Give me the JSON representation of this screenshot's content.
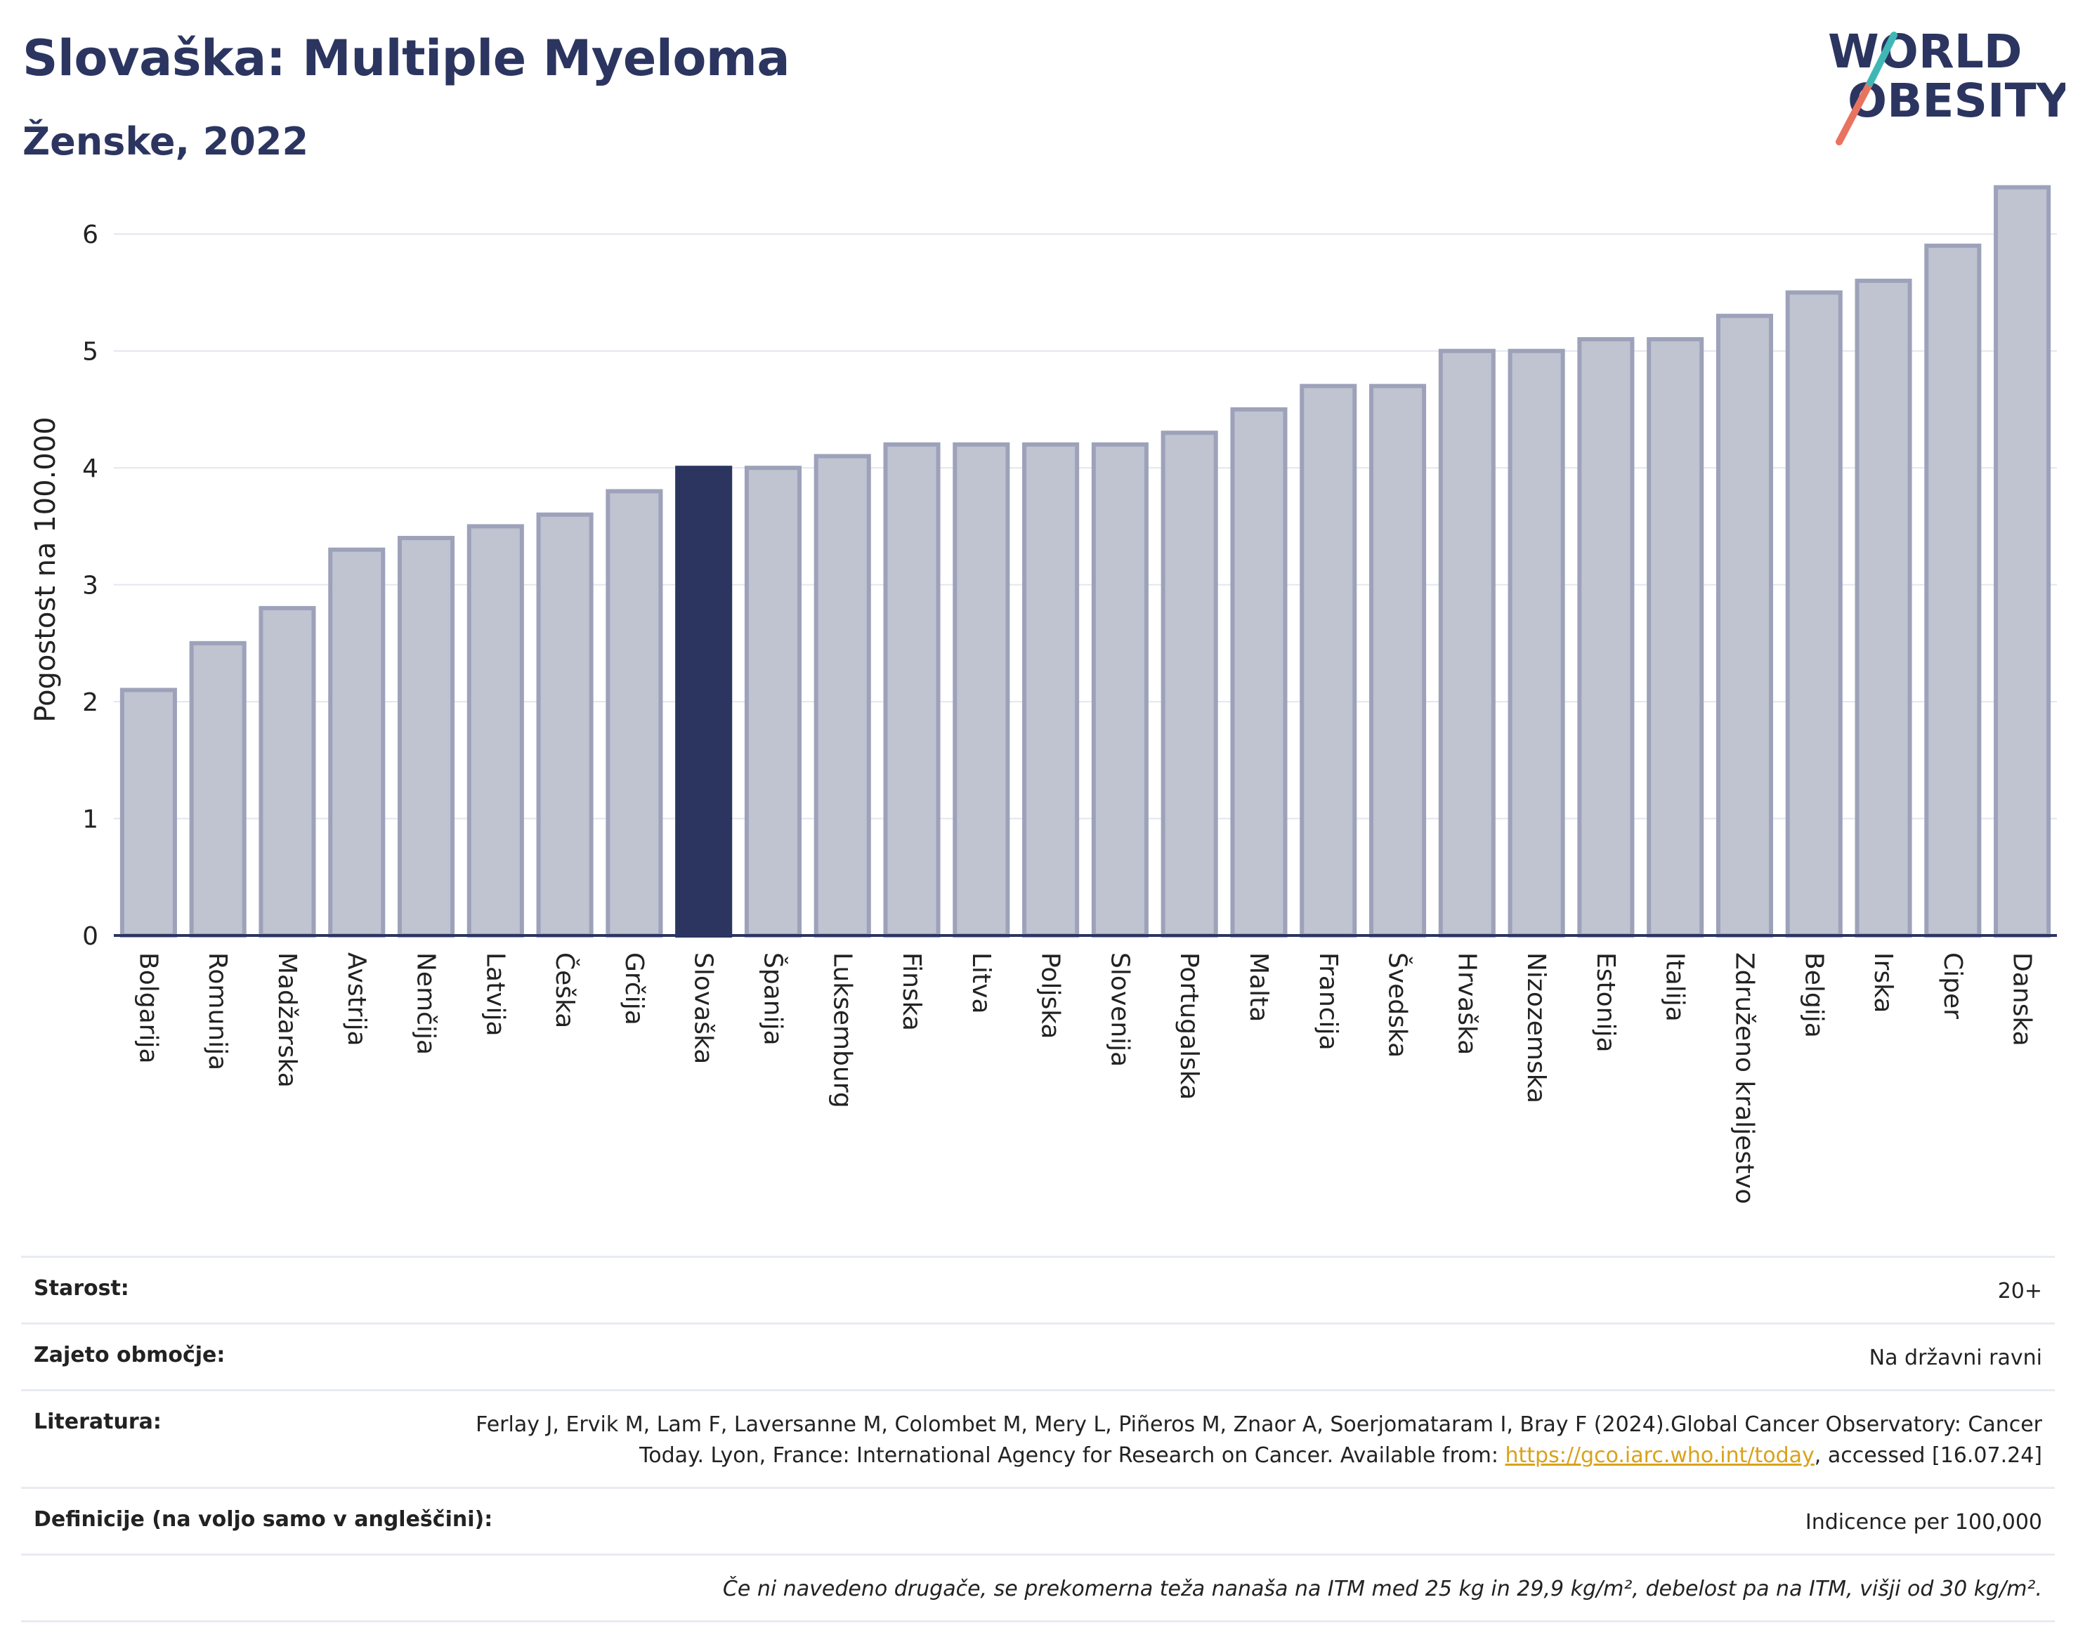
{
  "header": {
    "title": "Slovaška: Multiple Myeloma",
    "subtitle": "Ženske, 2022"
  },
  "logo": {
    "line1": "WORLD",
    "line2": "OBESITY"
  },
  "chart_data": {
    "type": "bar",
    "ylabel": "Pogostost na 100.000",
    "ylim": [
      0,
      6.5
    ],
    "yticks": [
      0,
      1,
      2,
      3,
      4,
      5,
      6
    ],
    "grid": true,
    "highlight": "Slovaška",
    "colors": {
      "bar": "#c0c3d0",
      "bar_border": "#9da2ba",
      "highlight": "#2b3560",
      "grid": "#e3e6ee",
      "axis": "#2b3560"
    },
    "categories": [
      "Bolgarija",
      "Romunija",
      "Madžarska",
      "Avstrija",
      "Nemčija",
      "Latvija",
      "Češka",
      "Grčija",
      "Slovaška",
      "Španija",
      "Luksemburg",
      "Finska",
      "Litva",
      "Poljska",
      "Slovenija",
      "Portugalska",
      "Malta",
      "Francija",
      "Švedska",
      "Hrvaška",
      "Nizozemska",
      "Estonija",
      "Italija",
      "Združeno kraljestvo",
      "Belgija",
      "Irska",
      "Ciper",
      "Danska"
    ],
    "values": [
      2.1,
      2.5,
      2.8,
      3.3,
      3.4,
      3.5,
      3.6,
      3.8,
      4.0,
      4.0,
      4.1,
      4.2,
      4.2,
      4.2,
      4.2,
      4.3,
      4.5,
      4.7,
      4.7,
      5.0,
      5.0,
      5.1,
      5.1,
      5.3,
      5.5,
      5.6,
      5.9,
      6.4
    ]
  },
  "info": {
    "age_label": "Starost:",
    "age_value": "20+",
    "coverage_label": "Zajeto območje:",
    "coverage_value": "Na državni ravni",
    "ref_label": "Literatura:",
    "ref_text_1": "Ferlay J, Ervik M, Lam F, Laversanne M, Colombet M, Mery L, Piñeros M, Znaor A, Soerjomataram I, Bray F (2024).Global Cancer Observatory: Cancer Today. Lyon, France: International Agency for Research on Cancer. Available from: ",
    "ref_link": "https://gco.iarc.who.int/today",
    "ref_text_2": ", accessed [16.07.24]",
    "def_label": "Definicije (na voljo samo v angleščini):",
    "def_value": "Indicence per 100,000",
    "note": "Če ni navedeno drugače, se prekomerna teža nanaša na ITM med 25 kg in 29,9 kg/m², debelost pa na ITM, višji od 30 kg/m²."
  }
}
